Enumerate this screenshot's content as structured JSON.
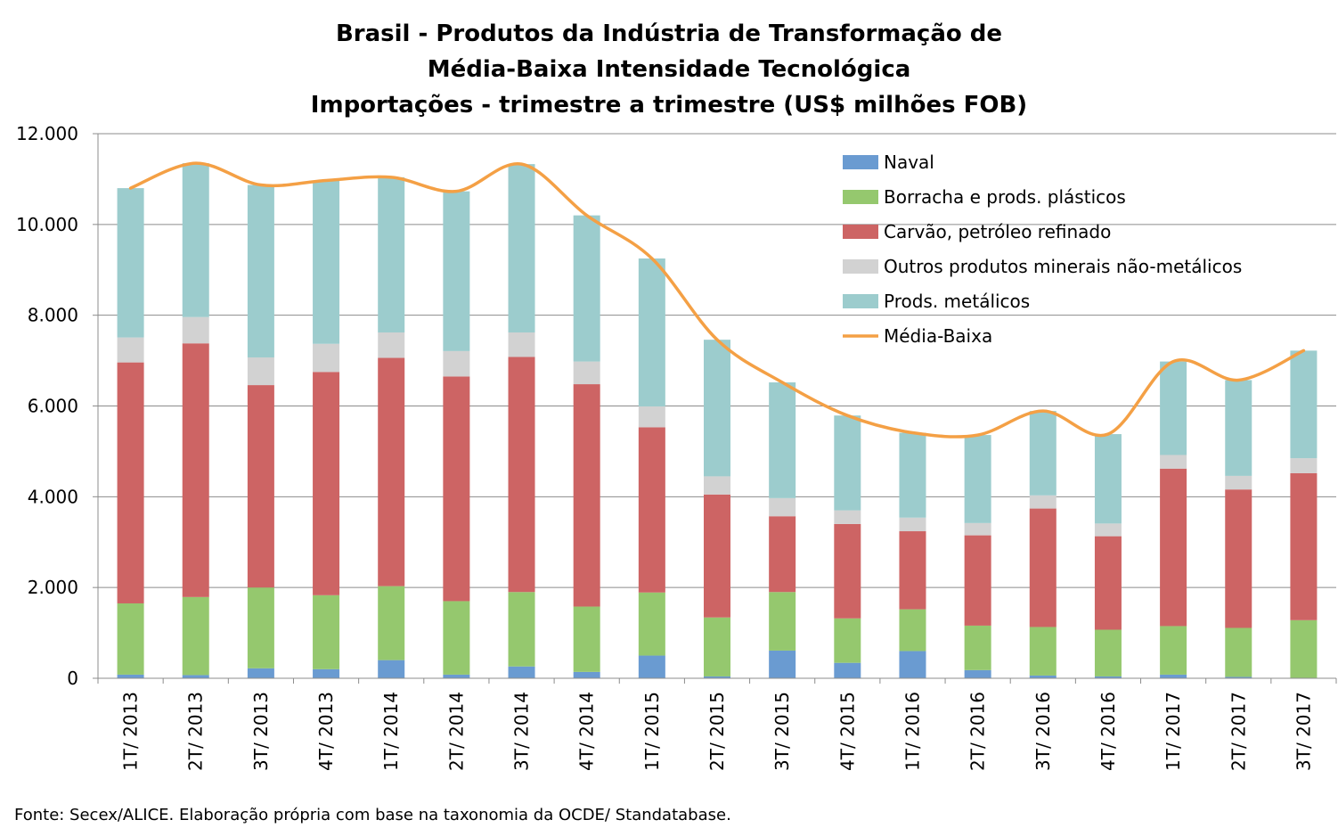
{
  "chart_data": {
    "type": "bar",
    "stacked": true,
    "title_lines": [
      "Brasil - Produtos da Indústria de Transformação de",
      "Média-Baixa Intensidade Tecnológica",
      "Importações - trimestre a trimestre (US$ milhões FOB)"
    ],
    "categories": [
      "1T/ 2013",
      "2T/ 2013",
      "3T/ 2013",
      "4T/ 2013",
      "1T/ 2014",
      "2T/ 2014",
      "3T/ 2014",
      "4T/ 2014",
      "1T/ 2015",
      "2T/ 2015",
      "3T/ 2015",
      "4T/ 2015",
      "1T/ 2016",
      "2T/ 2016",
      "3T/ 2016",
      "4T/ 2016",
      "1T/ 2017",
      "2T/ 2017",
      "3T/ 2017"
    ],
    "ylim": [
      0,
      12000
    ],
    "yticks": [
      0,
      2000,
      4000,
      6000,
      8000,
      10000,
      12000
    ],
    "ytick_labels": [
      "0",
      "2.000",
      "4.000",
      "6.000",
      "8.000",
      "10.000",
      "12.000"
    ],
    "grid": true,
    "legend_position": "top-right",
    "series": [
      {
        "name": "Naval",
        "color": "#6a9bd1",
        "values": [
          80,
          70,
          220,
          200,
          400,
          80,
          260,
          140,
          500,
          40,
          610,
          340,
          600,
          180,
          60,
          40,
          80,
          30,
          10
        ]
      },
      {
        "name": "Borracha e prods. plásticos",
        "color": "#95c86e",
        "values": [
          1570,
          1720,
          1780,
          1630,
          1630,
          1620,
          1640,
          1440,
          1390,
          1300,
          1290,
          980,
          920,
          980,
          1070,
          1030,
          1070,
          1080,
          1270
        ]
      },
      {
        "name": "Carvão, petróleo refinado",
        "color": "#cd6464",
        "values": [
          5310,
          5590,
          4460,
          4920,
          5030,
          4950,
          5180,
          4900,
          3640,
          2710,
          1670,
          2080,
          1720,
          1990,
          2610,
          2060,
          3470,
          3050,
          3240
        ]
      },
      {
        "name": "Outros produtos minerais não-metálicos",
        "color": "#d2d2d2",
        "values": [
          550,
          580,
          610,
          620,
          560,
          560,
          540,
          500,
          460,
          400,
          400,
          300,
          300,
          270,
          290,
          280,
          300,
          300,
          330
        ]
      },
      {
        "name": "Prods. metálicos",
        "color": "#9ccccd",
        "values": [
          3290,
          3390,
          3800,
          3600,
          3420,
          3520,
          3710,
          3220,
          3260,
          3010,
          2550,
          2090,
          1870,
          1940,
          1860,
          1970,
          2060,
          2110,
          2370
        ]
      }
    ],
    "line_series": {
      "name": "Média-Baixa",
      "color": "#f4a045",
      "values": [
        10800,
        11350,
        10870,
        10970,
        11040,
        10730,
        11330,
        10200,
        9250,
        7460,
        6520,
        5790,
        5410,
        5360,
        5890,
        5380,
        6980,
        6570,
        7220
      ]
    },
    "source": "Fonte: Secex/ALICE. Elaboração própria com base na taxonomia da OCDE/ Standatabase."
  }
}
